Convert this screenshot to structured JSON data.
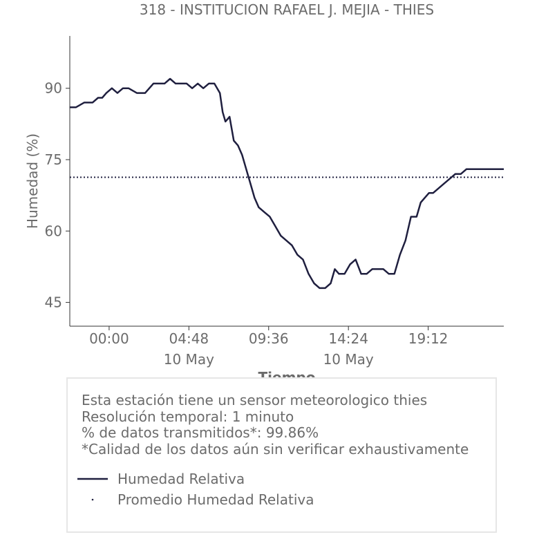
{
  "chart_data": {
    "type": "line",
    "title": "318 - INSTITUCION RAFAEL J. MEJIA - THIES",
    "xlabel": "Tiempo",
    "ylabel": "Humedad (%)",
    "ylim": [
      40,
      101
    ],
    "yticks": [
      45,
      60,
      75,
      90
    ],
    "xlim": [
      "2021-05-09 21:38",
      "2021-05-10 23:45"
    ],
    "xticks": [
      {
        "t": "2021-05-10 00:00",
        "time": "00:00",
        "date": ""
      },
      {
        "t": "2021-05-10 04:48",
        "time": "04:48",
        "date": "10 May"
      },
      {
        "t": "2021-05-10 09:36",
        "time": "09:36",
        "date": ""
      },
      {
        "t": "2021-05-10 14:24",
        "time": "14:24",
        "date": "10 May"
      },
      {
        "t": "2021-05-10 19:12",
        "time": "19:12",
        "date": ""
      }
    ],
    "series": [
      {
        "name": "Humedad Relativa",
        "color": "#1f1f3f",
        "style": "solid",
        "x": [
          "2021-05-09 21:38",
          "2021-05-09 22:00",
          "2021-05-09 22:30",
          "2021-05-09 23:00",
          "2021-05-09 23:20",
          "2021-05-09 23:35",
          "2021-05-09 23:50",
          "2021-05-10 00:10",
          "2021-05-10 00:30",
          "2021-05-10 00:50",
          "2021-05-10 01:10",
          "2021-05-10 01:40",
          "2021-05-10 02:10",
          "2021-05-10 02:40",
          "2021-05-10 03:00",
          "2021-05-10 03:20",
          "2021-05-10 03:40",
          "2021-05-10 04:00",
          "2021-05-10 04:20",
          "2021-05-10 04:40",
          "2021-05-10 05:00",
          "2021-05-10 05:20",
          "2021-05-10 05:40",
          "2021-05-10 06:00",
          "2021-05-10 06:20",
          "2021-05-10 06:30",
          "2021-05-10 06:40",
          "2021-05-10 06:50",
          "2021-05-10 07:00",
          "2021-05-10 07:15",
          "2021-05-10 07:30",
          "2021-05-10 07:45",
          "2021-05-10 08:00",
          "2021-05-10 08:15",
          "2021-05-10 08:30",
          "2021-05-10 08:45",
          "2021-05-10 09:00",
          "2021-05-10 09:20",
          "2021-05-10 09:40",
          "2021-05-10 10:00",
          "2021-05-10 10:20",
          "2021-05-10 10:40",
          "2021-05-10 11:00",
          "2021-05-10 11:20",
          "2021-05-10 11:40",
          "2021-05-10 12:00",
          "2021-05-10 12:20",
          "2021-05-10 12:40",
          "2021-05-10 13:00",
          "2021-05-10 13:20",
          "2021-05-10 13:35",
          "2021-05-10 13:50",
          "2021-05-10 14:10",
          "2021-05-10 14:30",
          "2021-05-10 14:50",
          "2021-05-10 15:10",
          "2021-05-10 15:30",
          "2021-05-10 15:50",
          "2021-05-10 16:10",
          "2021-05-10 16:30",
          "2021-05-10 16:50",
          "2021-05-10 17:10",
          "2021-05-10 17:30",
          "2021-05-10 17:50",
          "2021-05-10 18:10",
          "2021-05-10 18:30",
          "2021-05-10 18:45",
          "2021-05-10 19:00",
          "2021-05-10 19:15",
          "2021-05-10 19:30",
          "2021-05-10 19:50",
          "2021-05-10 20:10",
          "2021-05-10 20:30",
          "2021-05-10 20:50",
          "2021-05-10 21:10",
          "2021-05-10 21:30",
          "2021-05-10 21:50",
          "2021-05-10 22:10",
          "2021-05-10 22:30",
          "2021-05-10 22:50",
          "2021-05-10 23:10",
          "2021-05-10 23:30",
          "2021-05-10 23:45"
        ],
        "y": [
          86,
          86,
          87,
          87,
          88,
          88,
          89,
          90,
          89,
          90,
          90,
          89,
          89,
          91,
          91,
          91,
          92,
          91,
          91,
          91,
          90,
          91,
          90,
          91,
          91,
          90,
          89,
          85,
          83,
          84,
          79,
          78,
          76,
          73,
          70,
          67,
          65,
          64,
          63,
          61,
          59,
          58,
          57,
          55,
          54,
          51,
          49,
          48,
          48,
          49,
          52,
          51,
          51,
          53,
          54,
          51,
          51,
          52,
          52,
          52,
          51,
          51,
          55,
          58,
          63,
          63,
          66,
          67,
          68,
          68,
          69,
          70,
          71,
          72,
          72,
          73,
          73,
          73,
          73,
          73,
          73,
          73,
          73
        ]
      },
      {
        "name": "Promedio Humedad Relativa",
        "color": "#1f1f3f",
        "style": "dotted",
        "value": 71.3
      }
    ],
    "legend_position": "bottom"
  },
  "info": {
    "line1": "Esta estación tiene un sensor meteorologico thies",
    "line2": "Resolución temporal: 1 minuto",
    "line3": "% de datos transmitidos*: 99.86%",
    "line4": "*Calidad de los datos aún sin verificar exhaustivamente"
  },
  "legend": {
    "item1": "Humedad Relativa",
    "item2": "Promedio Humedad Relativa"
  }
}
